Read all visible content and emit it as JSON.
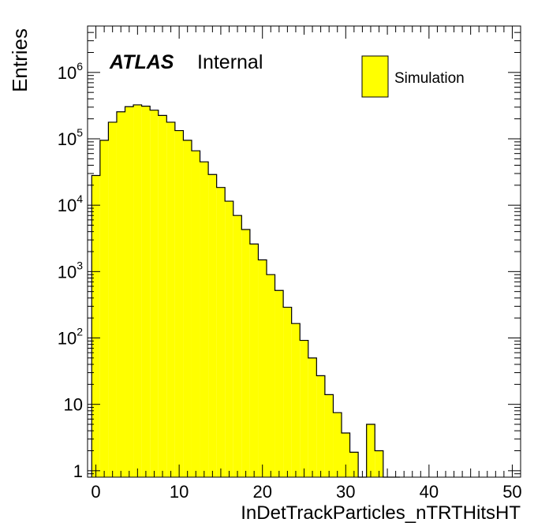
{
  "chart_data": {
    "type": "bar",
    "histogram": true,
    "log_y": true,
    "xlabel": "InDetTrackParticles_nTRTHitsHT",
    "ylabel": "Entries",
    "xlim": [
      -1,
      51
    ],
    "ylim": [
      0.8,
      5000000
    ],
    "x_ticks": [
      0,
      10,
      20,
      30,
      40,
      50
    ],
    "y_ticks": [
      {
        "value": 1,
        "label": "1"
      },
      {
        "value": 10,
        "label": "10"
      },
      {
        "value": 100,
        "base": "10",
        "exp": "2"
      },
      {
        "value": 1000,
        "base": "10",
        "exp": "3"
      },
      {
        "value": 10000,
        "base": "10",
        "exp": "4"
      },
      {
        "value": 100000,
        "base": "10",
        "exp": "5"
      },
      {
        "value": 1000000,
        "base": "10",
        "exp": "6"
      }
    ],
    "atlas_label": "ATLAS",
    "atlas_sublabel": "Internal",
    "legend_position": "top-right",
    "series": [
      {
        "name": "Simulation",
        "color": "#ffff00",
        "edge_color": "#000000",
        "bin_low_edges": [
          -0.5,
          0.5,
          1.5,
          2.5,
          3.5,
          4.5,
          5.5,
          6.5,
          7.5,
          8.5,
          9.5,
          10.5,
          11.5,
          12.5,
          13.5,
          14.5,
          15.5,
          16.5,
          17.5,
          18.5,
          19.5,
          20.5,
          21.5,
          22.5,
          23.5,
          24.5,
          25.5,
          26.5,
          27.5,
          28.5,
          29.5,
          30.5,
          31.5,
          32.5,
          33.5,
          34.5,
          35.5
        ],
        "bin_width": 1,
        "values": [
          28000,
          95000,
          178000,
          255000,
          305000,
          325000,
          310000,
          270000,
          225000,
          178000,
          133000,
          95000,
          66000,
          45000,
          29000,
          18500,
          11500,
          7000,
          4300,
          2600,
          1500,
          900,
          520,
          290,
          165,
          92,
          50,
          27,
          14,
          7.5,
          3.7,
          1.9,
          0,
          5,
          2,
          0,
          0
        ]
      }
    ]
  }
}
